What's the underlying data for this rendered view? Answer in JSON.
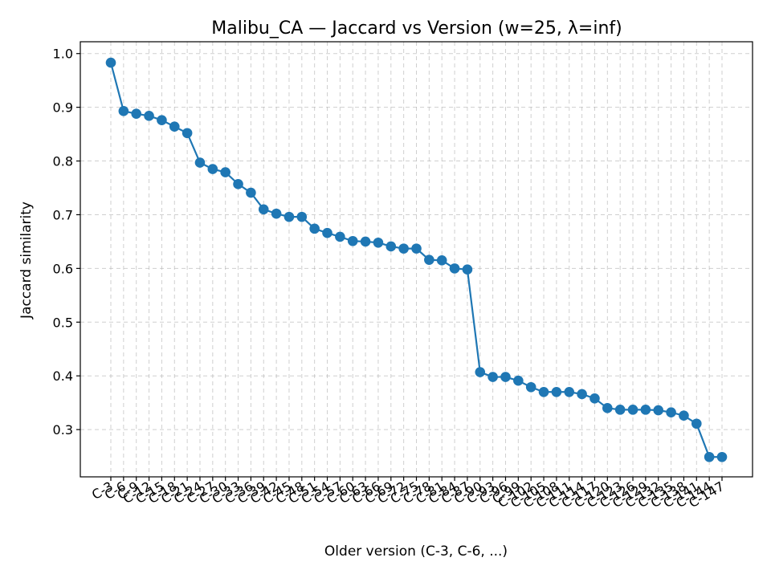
{
  "chart_data": {
    "type": "line",
    "title": "Malibu_CA — Jaccard vs Version (w=25, λ=inf)",
    "xlabel": "Older version (C-3, C-6, ...)",
    "ylabel": "Jaccard similarity",
    "ylim": [
      0.212,
      1.022
    ],
    "y_ticks": [
      0.3,
      0.4,
      0.5,
      0.6,
      0.7,
      0.8,
      0.9,
      1.0
    ],
    "grid": true,
    "series": [
      {
        "color": "#1f77b4",
        "marker": "circle",
        "values": [
          0.983,
          0.893,
          0.888,
          0.884,
          0.876,
          0.864,
          0.852,
          0.797,
          0.785,
          0.779,
          0.757,
          0.741,
          0.71,
          0.702,
          0.696,
          0.696,
          0.674,
          0.666,
          0.659,
          0.651,
          0.65,
          0.648,
          0.641,
          0.637,
          0.637,
          0.616,
          0.615,
          0.6,
          0.598,
          0.407,
          0.398,
          0.398,
          0.391,
          0.379,
          0.37,
          0.37,
          0.37,
          0.366,
          0.358,
          0.34,
          0.337,
          0.337,
          0.337,
          0.336,
          0.332,
          0.326,
          0.311,
          0.249,
          0.249
        ]
      }
    ],
    "categories": [
      "C-3",
      "C-6",
      "C-9",
      "C-12",
      "C-15",
      "C-18",
      "C-21",
      "C-24",
      "C-27",
      "C-30",
      "C-33",
      "C-36",
      "C-39",
      "C-42",
      "C-45",
      "C-48",
      "C-51",
      "C-54",
      "C-57",
      "C-60",
      "C-63",
      "C-66",
      "C-69",
      "C-72",
      "C-75",
      "C-78",
      "C-81",
      "C-84",
      "C-87",
      "C-90",
      "C-93",
      "C-96",
      "C-99",
      "C-102",
      "C-105",
      "C-108",
      "C-111",
      "C-114",
      "C-117",
      "C-120",
      "C-123",
      "C-126",
      "C-129",
      "C-132",
      "C-135",
      "C-138",
      "C-141",
      "C-144",
      "C-147"
    ]
  }
}
